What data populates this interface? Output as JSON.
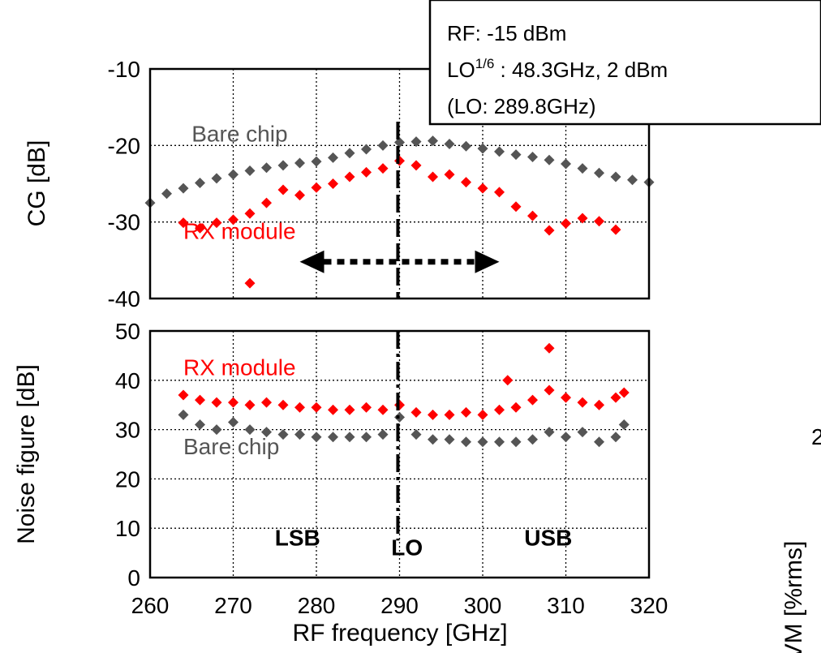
{
  "chart_data": [
    {
      "type": "scatter",
      "panel": "top",
      "ylabel": "CG [dB]",
      "xlim": [
        260,
        320
      ],
      "ylim": [
        -40,
        -10
      ],
      "y_ticks": [
        "-10",
        "-20",
        "-30",
        "-40"
      ],
      "grid": true,
      "series": [
        {
          "name": "Bare chip",
          "color": "#555555",
          "marker": "diamond",
          "points": [
            [
              260,
              -27.5
            ],
            [
              262,
              -26.3
            ],
            [
              264,
              -25.6
            ],
            [
              266,
              -24.9
            ],
            [
              268,
              -24.3
            ],
            [
              270,
              -23.8
            ],
            [
              272,
              -23.3
            ],
            [
              274,
              -22.9
            ],
            [
              276,
              -22.6
            ],
            [
              278,
              -22.3
            ],
            [
              280,
              -22.1
            ],
            [
              282,
              -21.6
            ],
            [
              284,
              -21.0
            ],
            [
              286,
              -20.5
            ],
            [
              288,
              -20.0
            ],
            [
              290,
              -19.6
            ],
            [
              292,
              -19.5
            ],
            [
              294,
              -19.4
            ],
            [
              296,
              -19.8
            ],
            [
              298,
              -20.1
            ],
            [
              300,
              -20.4
            ],
            [
              302,
              -20.8
            ],
            [
              304,
              -21.2
            ],
            [
              306,
              -21.5
            ],
            [
              308,
              -21.9
            ],
            [
              310,
              -22.4
            ],
            [
              312,
              -23.0
            ],
            [
              314,
              -23.6
            ],
            [
              316,
              -24.1
            ],
            [
              318,
              -24.5
            ],
            [
              320,
              -24.8
            ]
          ]
        },
        {
          "name": "RX module",
          "color": "#ff0000",
          "marker": "diamond",
          "points": [
            [
              264,
              -30.1
            ],
            [
              266,
              -30.8
            ],
            [
              268,
              -30.1
            ],
            [
              270,
              -29.7
            ],
            [
              272,
              -28.9
            ],
            [
              274,
              -27.5
            ],
            [
              276,
              -25.8
            ],
            [
              278,
              -26.5
            ],
            [
              280,
              -25.5
            ],
            [
              282,
              -25.0
            ],
            [
              284,
              -24.1
            ],
            [
              286,
              -23.5
            ],
            [
              288,
              -23.0
            ],
            [
              290,
              -22.0
            ],
            [
              292,
              -22.6
            ],
            [
              294,
              -24.1
            ],
            [
              296,
              -23.8
            ],
            [
              298,
              -24.8
            ],
            [
              300,
              -25.6
            ],
            [
              302,
              -26.1
            ],
            [
              304,
              -28.0
            ],
            [
              306,
              -29.2
            ],
            [
              308,
              -31.1
            ],
            [
              310,
              -30.2
            ],
            [
              312,
              -29.5
            ],
            [
              314,
              -29.9
            ],
            [
              316,
              -31.0
            ],
            [
              272,
              -38.0
            ]
          ]
        }
      ],
      "annotations": [
        {
          "text": "Bare chip",
          "x": 265,
          "y": -19.5,
          "color": "#555555"
        },
        {
          "text": "RX module",
          "x": 264,
          "y": -32.2,
          "color": "#ff0000"
        }
      ],
      "arrow_range": [
        278,
        302
      ],
      "lo_line_x": 289.8
    },
    {
      "type": "scatter",
      "panel": "bottom",
      "xlabel": "RF frequency [GHz]",
      "ylabel": "Noise figure [dB]",
      "xlim": [
        260,
        320
      ],
      "ylim": [
        0,
        50
      ],
      "x_ticks": [
        "260",
        "270",
        "280",
        "290",
        "300",
        "310",
        "320"
      ],
      "y_ticks": [
        "50",
        "40",
        "30",
        "20",
        "10",
        "0"
      ],
      "grid": true,
      "series": [
        {
          "name": "RX module",
          "color": "#ff0000",
          "marker": "diamond",
          "points": [
            [
              264,
              37.0
            ],
            [
              266,
              36.0
            ],
            [
              268,
              35.5
            ],
            [
              270,
              35.5
            ],
            [
              272,
              35.0
            ],
            [
              274,
              35.5
            ],
            [
              276,
              35.0
            ],
            [
              278,
              34.5
            ],
            [
              280,
              34.5
            ],
            [
              282,
              34.0
            ],
            [
              284,
              34.0
            ],
            [
              286,
              34.5
            ],
            [
              288,
              34.0
            ],
            [
              290,
              35.0
            ],
            [
              292,
              33.5
            ],
            [
              294,
              33.0
            ],
            [
              296,
              33.0
            ],
            [
              298,
              33.5
            ],
            [
              300,
              33.0
            ],
            [
              302,
              34.0
            ],
            [
              304,
              34.5
            ],
            [
              306,
              36.0
            ],
            [
              308,
              38.0
            ],
            [
              310,
              36.5
            ],
            [
              312,
              35.5
            ],
            [
              314,
              35.0
            ],
            [
              316,
              36.5
            ],
            [
              303,
              40.0
            ],
            [
              308,
              46.5
            ],
            [
              317,
              37.5
            ]
          ]
        },
        {
          "name": "Bare chip",
          "color": "#555555",
          "marker": "diamond",
          "points": [
            [
              264,
              33.0
            ],
            [
              266,
              31.0
            ],
            [
              268,
              30.0
            ],
            [
              270,
              31.5
            ],
            [
              272,
              30.0
            ],
            [
              274,
              29.5
            ],
            [
              276,
              29.0
            ],
            [
              278,
              29.0
            ],
            [
              280,
              28.5
            ],
            [
              282,
              28.5
            ],
            [
              284,
              28.5
            ],
            [
              286,
              28.5
            ],
            [
              288,
              29.0
            ],
            [
              290,
              32.5
            ],
            [
              292,
              29.0
            ],
            [
              294,
              28.0
            ],
            [
              296,
              28.0
            ],
            [
              298,
              27.5
            ],
            [
              300,
              27.5
            ],
            [
              302,
              27.5
            ],
            [
              304,
              27.5
            ],
            [
              306,
              28.0
            ],
            [
              308,
              29.5
            ],
            [
              310,
              28.5
            ],
            [
              312,
              29.5
            ],
            [
              314,
              27.5
            ],
            [
              316,
              28.5
            ],
            [
              317,
              31.0
            ]
          ]
        }
      ],
      "annotations": [
        {
          "text": "RX module",
          "x": 264,
          "y": 41.0,
          "color": "#ff0000"
        },
        {
          "text": "Bare chip",
          "x": 264,
          "y": 25.0,
          "color": "#555555"
        },
        {
          "text": "LSB",
          "x": 275,
          "y": 6.5,
          "color": "#000000",
          "bold": true
        },
        {
          "text": "LO",
          "x": 289,
          "y": 4.5,
          "color": "#000000",
          "bold": true
        },
        {
          "text": "USB",
          "x": 305,
          "y": 6.5,
          "color": "#000000",
          "bold": true
        }
      ],
      "lo_line_x": 289.8
    }
  ],
  "legend_box": {
    "line1": "RF: -15 dBm",
    "line2_prefix": "LO",
    "line2_sup": "1/6",
    "line2_suffix": " : 48.3GHz, 2 dBm",
    "line3": "(LO: 289.8GHz)"
  },
  "clipped_neighbor": {
    "ylabel_fragment": "VM [%rms]",
    "tick_fragment": "2"
  }
}
